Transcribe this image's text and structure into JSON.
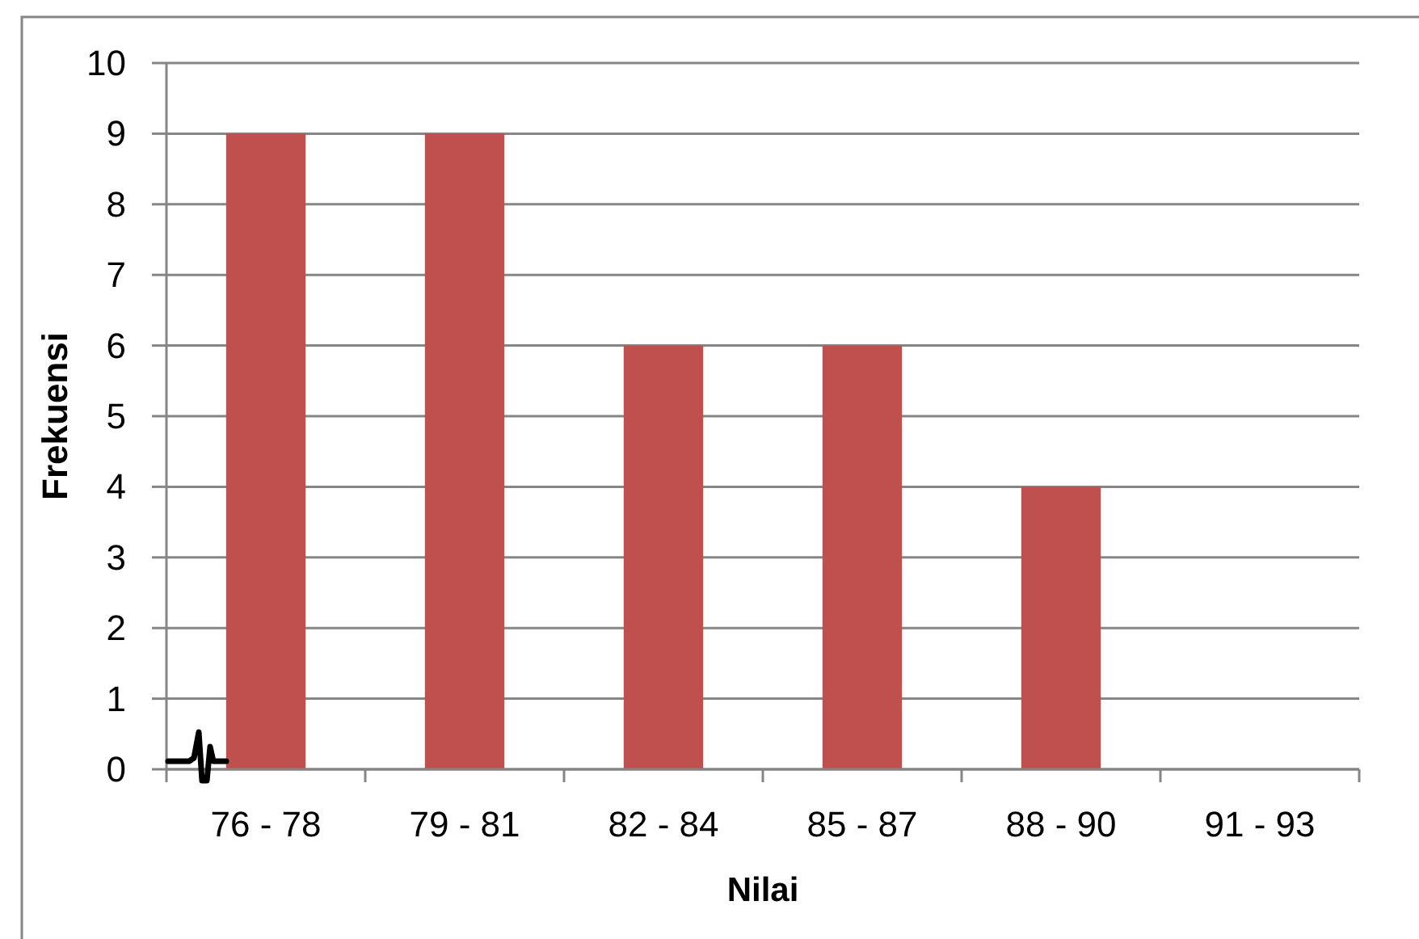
{
  "chart_data": {
    "type": "bar",
    "xlabel": "Nilai",
    "ylabel": "Frekuensi",
    "categories": [
      "76 - 78",
      "79 - 81",
      "82 - 84",
      "85 - 87",
      "88 - 90",
      "91 - 93"
    ],
    "values": [
      9,
      9,
      6,
      6,
      4,
      0
    ],
    "color": "#c0504d",
    "ylim": [
      0,
      10
    ],
    "yticks": [
      0,
      1,
      2,
      3,
      4,
      5,
      6,
      7,
      8,
      9,
      10
    ],
    "grid": "y"
  }
}
